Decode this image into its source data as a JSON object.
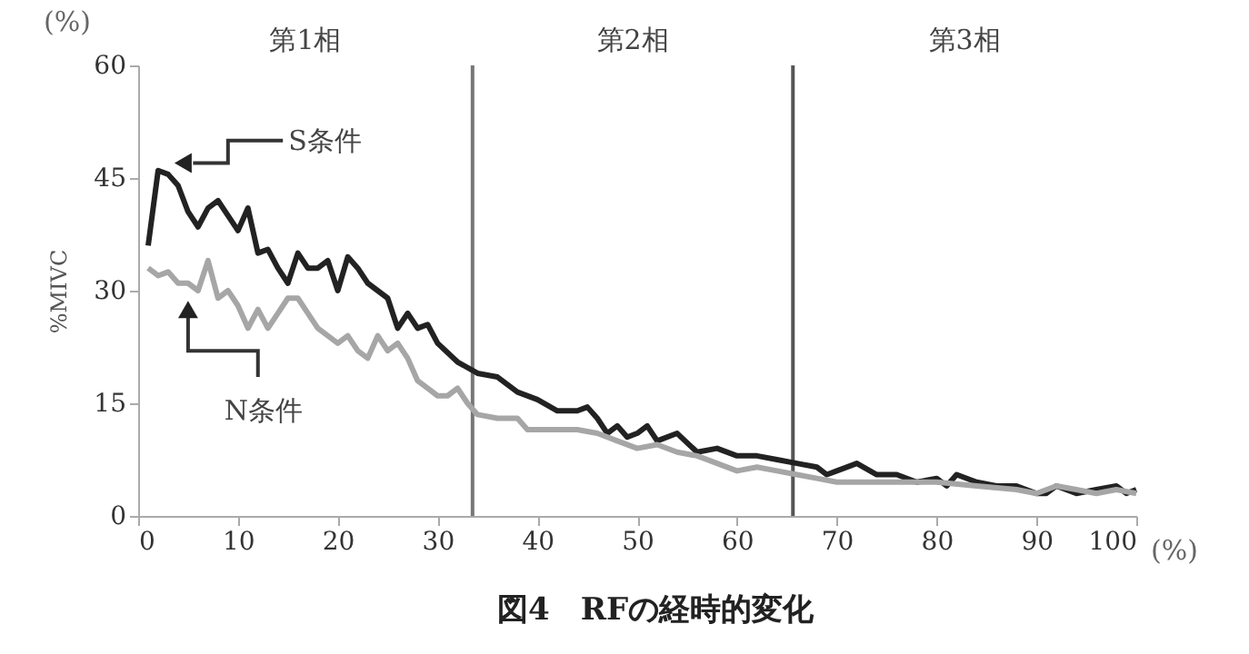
{
  "chart_data": {
    "type": "line",
    "title": "図4　RFの経時的変化",
    "ylabel": "%MIVC",
    "annotations": [
      "第1相",
      "第2相",
      "第3相",
      "(%)",
      "(%)"
    ],
    "xlim": [
      0,
      100
    ],
    "xticks": [
      0,
      10,
      20,
      30,
      40,
      50,
      60,
      70,
      80,
      90,
      100
    ],
    "ylim": [
      0,
      60
    ],
    "yticks": [
      0,
      15,
      30,
      45,
      60
    ],
    "grid": false,
    "line_style": "solid",
    "marker": "none",
    "ref_lines": [
      {
        "axis": "x",
        "value": 33.5,
        "color": "#777777"
      },
      {
        "axis": "x",
        "value": 65.6,
        "color": "#555555"
      }
    ],
    "series": [
      {
        "name": "S条件",
        "color": "#222222",
        "x": [
          1,
          2,
          3,
          4,
          5,
          6,
          7,
          8,
          9,
          10,
          11,
          12,
          13,
          14,
          15,
          16,
          17,
          18,
          19,
          20,
          21,
          22,
          23,
          24,
          25,
          26,
          27,
          28,
          29,
          30,
          32,
          34,
          36,
          38,
          40,
          42,
          44,
          45,
          46,
          47,
          48,
          49,
          50,
          51,
          52,
          54,
          56,
          58,
          60,
          62,
          64,
          66,
          68,
          69,
          70,
          72,
          74,
          76,
          78,
          80,
          81,
          82,
          84,
          86,
          88,
          90,
          91,
          92,
          94,
          96,
          98,
          99,
          100
        ],
        "values": [
          36,
          46,
          45.5,
          44,
          40.5,
          38.5,
          41,
          42,
          40,
          38,
          41,
          35,
          35.5,
          33,
          31,
          35,
          33,
          33,
          34,
          30,
          34.5,
          33,
          31,
          30,
          29,
          25,
          27,
          25,
          25.5,
          23,
          20.5,
          19,
          18.5,
          16.5,
          15.5,
          14,
          14,
          14.5,
          13,
          11,
          12,
          10.5,
          11,
          12,
          10,
          11,
          8.5,
          9,
          8,
          8,
          7.5,
          7,
          6.5,
          5.5,
          6,
          7,
          5.5,
          5.5,
          4.5,
          5,
          4,
          5.5,
          4.5,
          4,
          4,
          3,
          3,
          4,
          3,
          3.5,
          4,
          3,
          3.5
        ]
      },
      {
        "name": "N条件",
        "color": "#a6a6a6",
        "x": [
          1,
          2,
          3,
          4,
          5,
          6,
          7,
          8,
          9,
          10,
          11,
          12,
          13,
          14,
          15,
          16,
          17,
          18,
          20,
          21,
          22,
          23,
          24,
          25,
          26,
          27,
          28,
          29,
          30,
          31,
          32,
          33,
          34,
          36,
          38,
          39,
          42,
          44,
          46,
          48,
          50,
          52,
          54,
          56,
          58,
          60,
          62,
          64,
          66,
          68,
          70,
          74,
          78,
          80,
          84,
          88,
          90,
          92,
          94,
          96,
          98,
          100
        ],
        "values": [
          33,
          32,
          32.5,
          31,
          31,
          30,
          34,
          29,
          30,
          28,
          25,
          27.5,
          25,
          27,
          29,
          29,
          27,
          25,
          23,
          24,
          22,
          21,
          24,
          22,
          23,
          21,
          18,
          17,
          16,
          16,
          17,
          15,
          13.5,
          13,
          13,
          11.5,
          11.5,
          11.5,
          11,
          10,
          9,
          9.5,
          8.5,
          8,
          7,
          6,
          6.5,
          6,
          5.5,
          5,
          4.5,
          4.5,
          4.5,
          4.5,
          4,
          3.5,
          3,
          4,
          3.5,
          3,
          3.5,
          3
        ]
      }
    ]
  }
}
